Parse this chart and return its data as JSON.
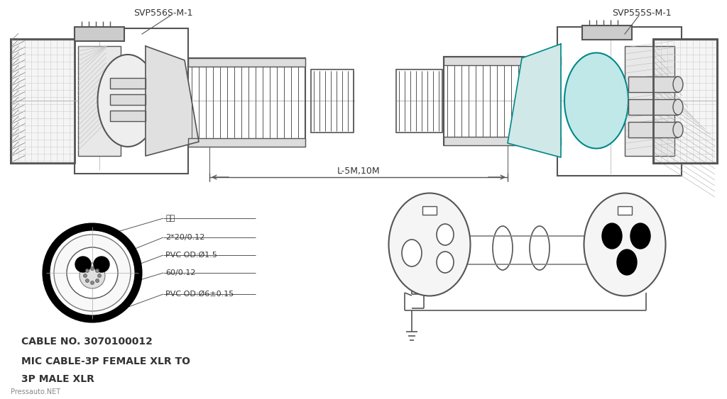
{
  "line_color": "#555555",
  "text_color": "#333333",
  "title_left": "SVP556S-M-1",
  "title_right": "SVP555S-M-1",
  "cable_no": "CABLE NO. 3070100012",
  "cable_desc1": "MIC CABLE-3P FEMALE XLR TO",
  "cable_desc2": "3P MALE XLR",
  "watermark": "Pressauto.NET",
  "dimension_label": "L-5M,10M",
  "cable_labels": [
    "棉线",
    "2*20/0.12",
    "PVC OD:Ø1.5",
    "60/0.12",
    "PVC OD:Ø6±0.15"
  ]
}
